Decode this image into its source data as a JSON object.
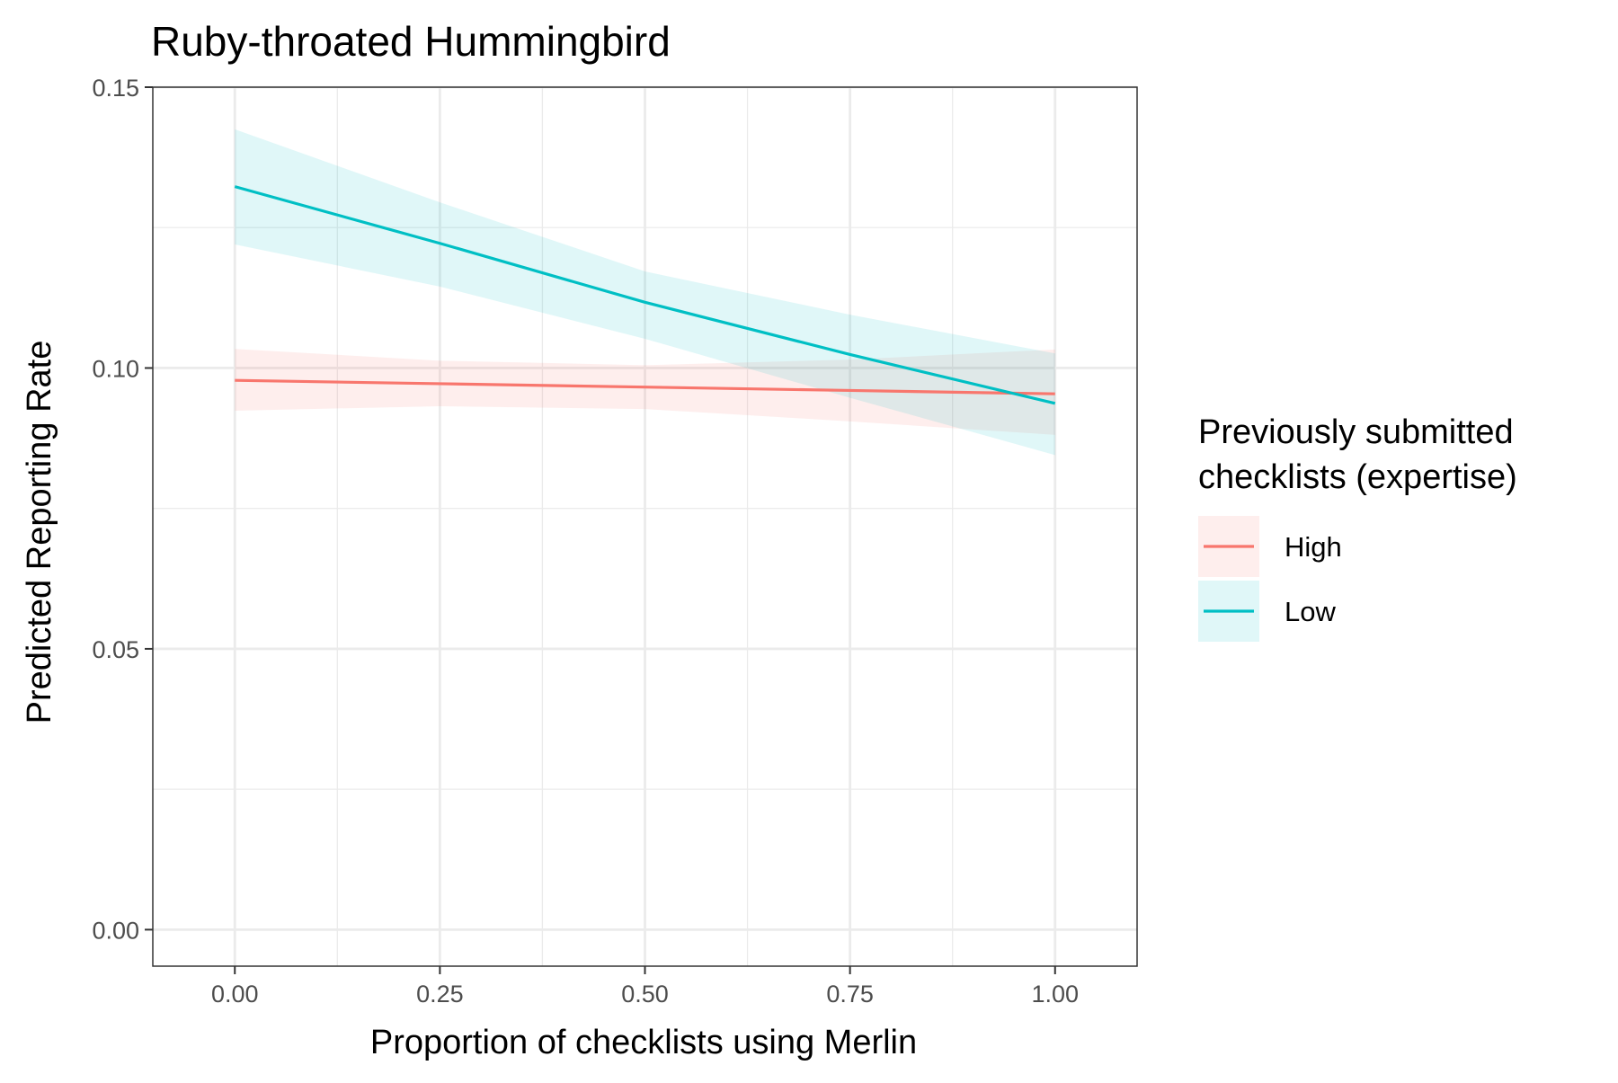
{
  "chart_data": {
    "type": "line",
    "title": "Ruby-throated Hummingbird",
    "xlabel": "Proportion of checklists using Merlin",
    "ylabel": "Predicted Reporting Rate",
    "xlim": [
      -0.1,
      1.1
    ],
    "ylim": [
      -0.0065,
      0.15
    ],
    "x_ticks": [
      0,
      0.25,
      0.5,
      0.75,
      1
    ],
    "x_tick_labels": [
      "0.00",
      "0.25",
      "0.50",
      "0.75",
      "1.00"
    ],
    "x_minor_ticks": [
      0.125,
      0.375,
      0.625,
      0.875
    ],
    "y_ticks": [
      0,
      0.05,
      0.1,
      0.15
    ],
    "y_tick_labels": [
      "0.00",
      "0.05",
      "0.10",
      "0.15"
    ],
    "y_minor_ticks": [
      0.025,
      0.075,
      0.125
    ],
    "grid": true,
    "legend": {
      "title_lines": [
        "Previously submitted",
        "checklists (expertise)"
      ],
      "placement": "right"
    },
    "series": [
      {
        "name": "High",
        "color": "#F8766D",
        "fill": "#F8766D",
        "x": [
          0,
          0.25,
          0.5,
          0.75,
          1
        ],
        "y": [
          0.0978,
          0.0972,
          0.0966,
          0.096,
          0.0954
        ],
        "lower": [
          0.0924,
          0.0932,
          0.0927,
          0.0905,
          0.0881
        ],
        "upper": [
          0.1034,
          0.1013,
          0.1005,
          0.1015,
          0.1033
        ]
      },
      {
        "name": "Low",
        "color": "#00BFC4",
        "fill": "#00BFC4",
        "x": [
          0,
          0.25,
          0.5,
          0.75,
          1
        ],
        "y": [
          0.1323,
          0.1222,
          0.1117,
          0.1024,
          0.0937
        ],
        "lower": [
          0.122,
          0.1145,
          0.1052,
          0.0947,
          0.0845
        ],
        "upper": [
          0.1425,
          0.1295,
          0.1172,
          0.1095,
          0.1026
        ]
      }
    ]
  }
}
